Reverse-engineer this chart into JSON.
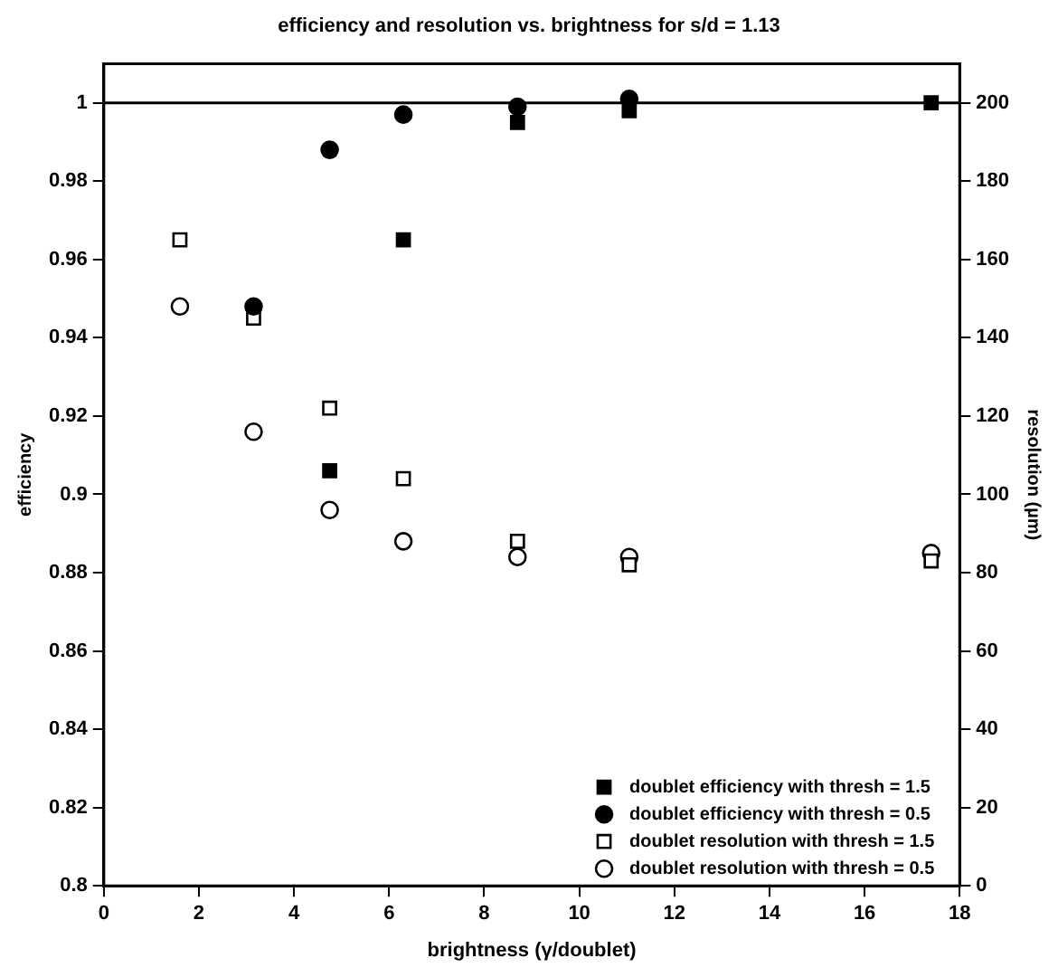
{
  "chart_data": {
    "type": "scatter",
    "title": "efficiency and resolution vs. brightness for s/d = 1.13",
    "xlabel": "brightness (γ/doublet)",
    "ylabel": "efficiency",
    "y2label": "resolution (µm)",
    "x": [
      1.6,
      3.15,
      4.75,
      6.3,
      8.7,
      11.05,
      17.4
    ],
    "series": [
      {
        "name": "doublet efficiency with thresh = 1.5",
        "color": "#000000",
        "marker": "square",
        "values": [
          null,
          null,
          0.906,
          0.965,
          0.995,
          0.998,
          1.0
        ]
      },
      {
        "name": "doublet efficiency with thresh = 0.5",
        "color": "#000000",
        "marker": "circle",
        "values": [
          null,
          0.948,
          0.988,
          0.997,
          0.999,
          1.001,
          null
        ]
      },
      {
        "name": "doublet resolution with thresh = 1.5",
        "color": "#000000",
        "marker": "square",
        "axis": "y2",
        "values": [
          165,
          145,
          122,
          104,
          88,
          82,
          83
        ]
      },
      {
        "name": "doublet resolution with thresh = 0.5",
        "color": "#000000",
        "marker": "circle",
        "axis": "y2",
        "values": [
          148,
          116,
          96,
          88,
          84,
          84,
          85
        ]
      }
    ],
    "xlim": [
      0,
      18
    ],
    "xticks": [
      0,
      2,
      4,
      6,
      8,
      10,
      12,
      14,
      16,
      18
    ],
    "ylim": [
      0.8,
      1.01
    ],
    "yticks": [
      0.8,
      0.82,
      0.84,
      0.86,
      0.88,
      0.9,
      0.92,
      0.94,
      0.96,
      0.98,
      1
    ],
    "y2lim": [
      0,
      210
    ],
    "y2ticks": [
      0,
      20,
      40,
      60,
      80,
      100,
      120,
      140,
      160,
      180,
      200
    ],
    "ref_lines": [
      {
        "axis": "y",
        "value": 1.0,
        "color": "#000000"
      }
    ],
    "grid": false,
    "legend": "bottom right"
  }
}
